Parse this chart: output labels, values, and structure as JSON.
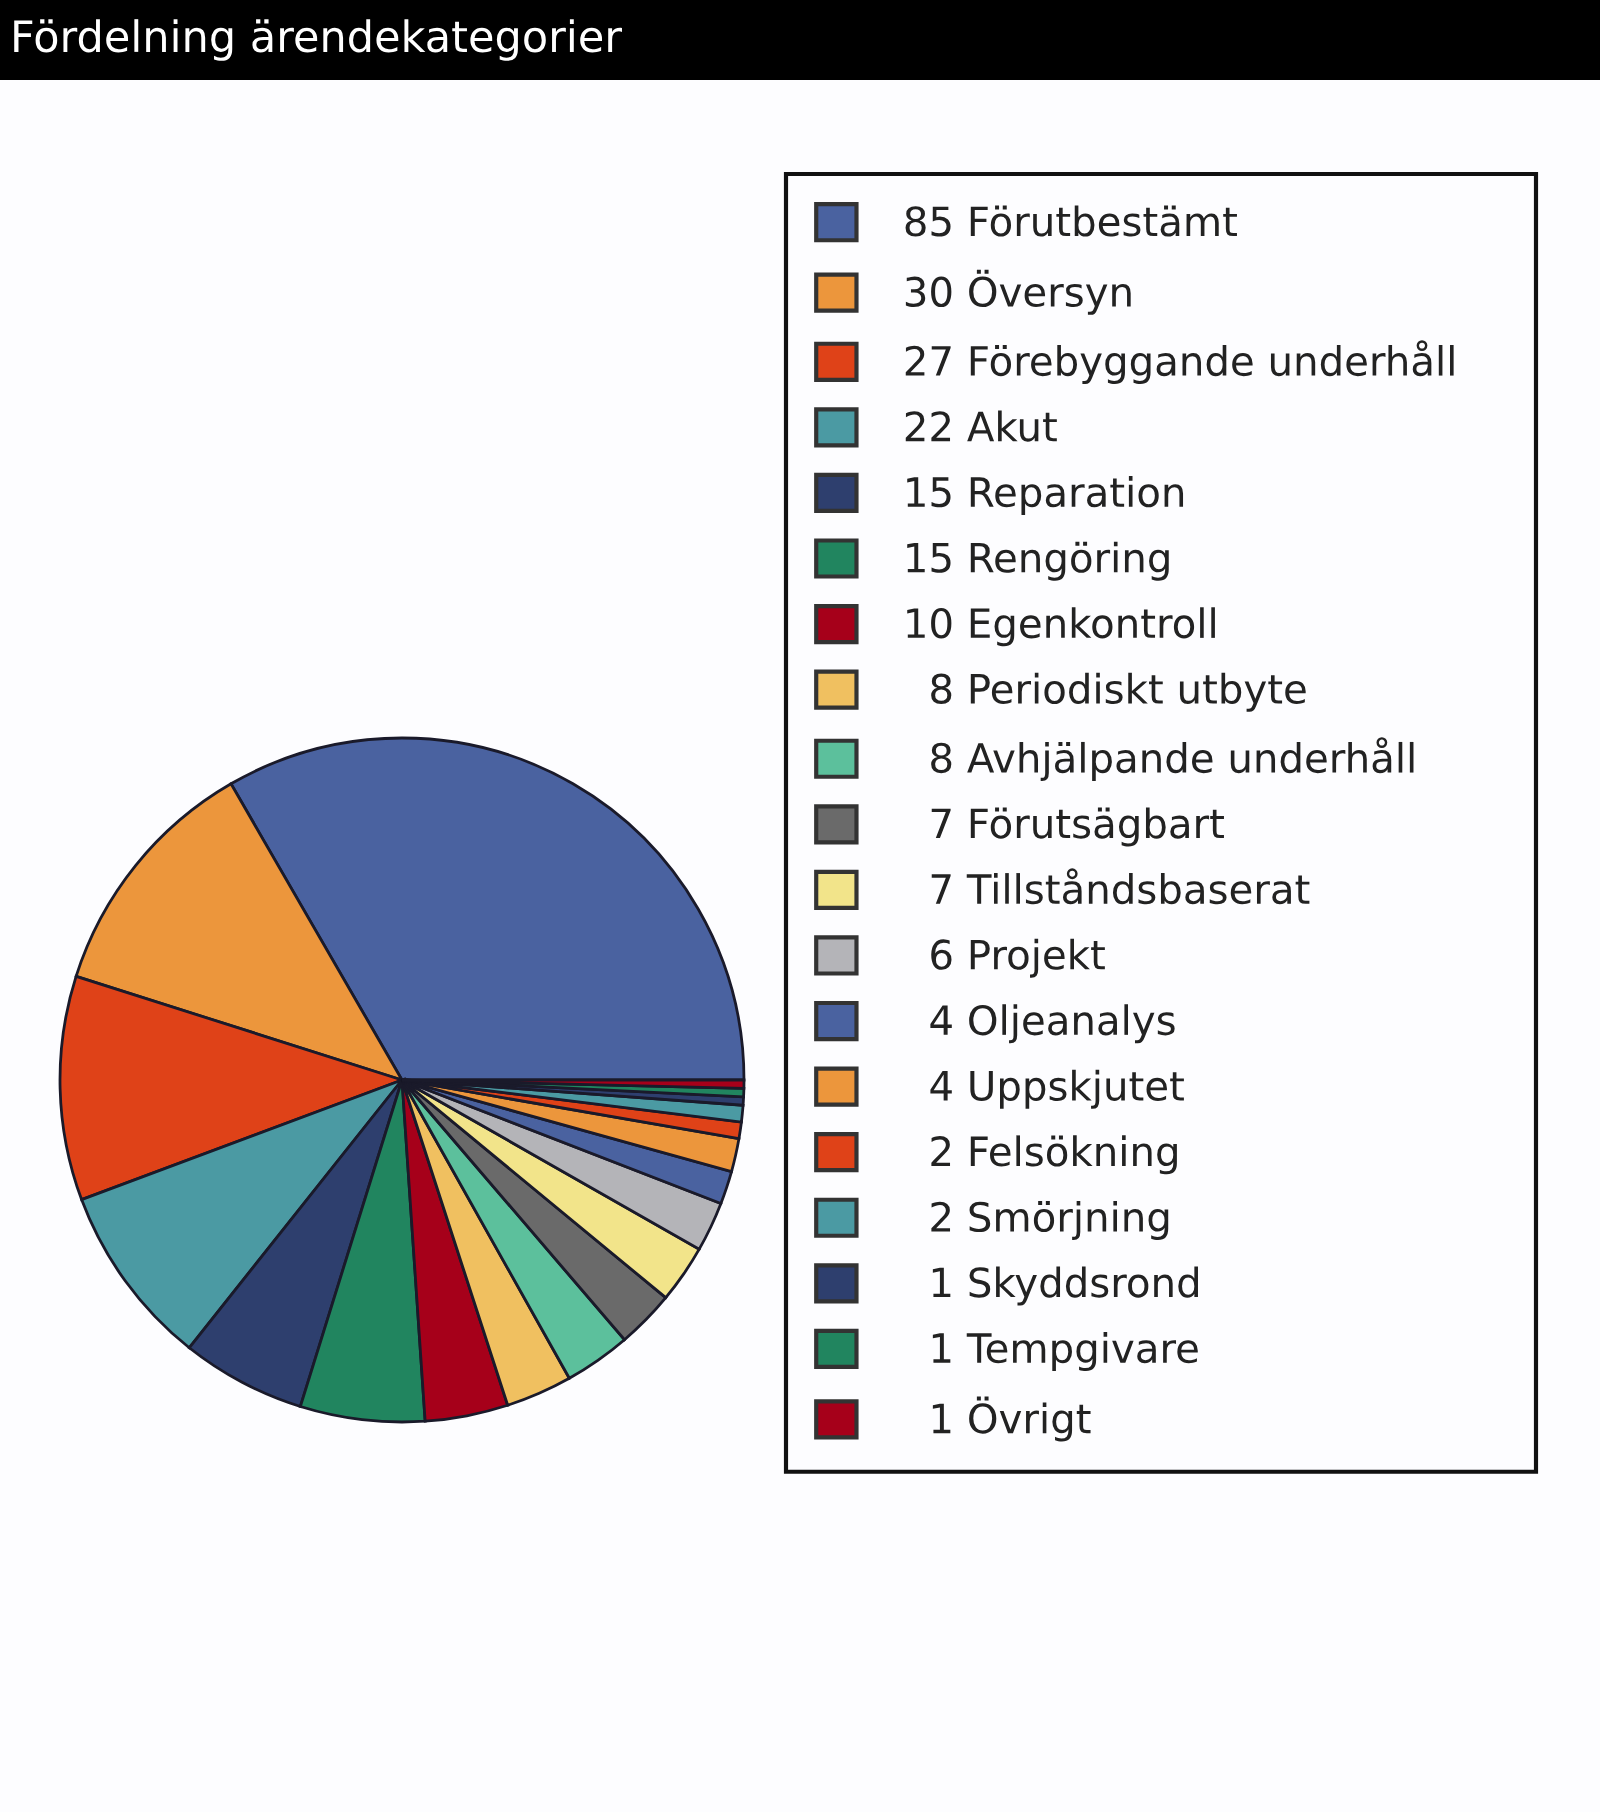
{
  "chart_data": {
    "type": "pie",
    "title": "Fördelning ärendekategorier",
    "categories": [
      "85 Förutbestämt",
      "30 Översyn",
      "27 Förebyggande underhåll",
      "22 Akut",
      "15 Reparation",
      "15 Rengöring",
      "10 Egenkontroll",
      "8 Periodiskt utbyte",
      "8 Avhjälpande underhåll",
      "7 Förutsägbart",
      "7 Tillståndsbaserat",
      "6 Projekt",
      "4 Oljeanalys",
      "4 Uppskjutet",
      "2 Felsökning",
      "2 Smörjning",
      "1 Skyddsrond",
      "1 Tempgivare",
      "1 Övrigt"
    ],
    "values": [
      85,
      30,
      27,
      22,
      15,
      15,
      10,
      8,
      8,
      7,
      7,
      6,
      4,
      4,
      2,
      2,
      1,
      1,
      1
    ],
    "colors": [
      "#4a62a0",
      "#ec963c",
      "#df4218",
      "#4b9aa3",
      "#2e3f6e",
      "#21855f",
      "#a6001a",
      "#f0c060",
      "#5cc09c",
      "#6a6a6a",
      "#f2e48a",
      "#b4b4b8",
      "#4a62a0",
      "#ec963c",
      "#df4218",
      "#4b9aa3",
      "#2e3f6e",
      "#21855f",
      "#a6001a"
    ],
    "legend": "right"
  }
}
